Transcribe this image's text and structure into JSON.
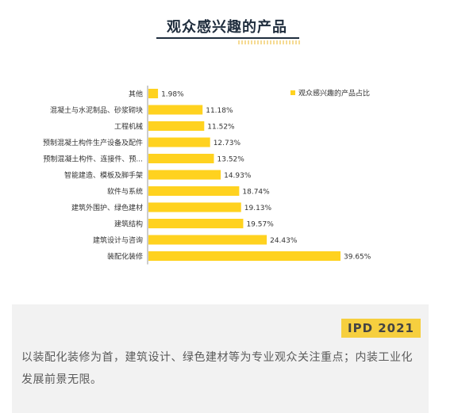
{
  "header": {
    "title": "观众感兴趣的产品"
  },
  "chart_data": {
    "type": "bar",
    "orientation": "horizontal",
    "legend": {
      "label": "观众感兴趣的产品占比",
      "placement": "top-right"
    },
    "series": [
      {
        "name": "观众感兴趣的产品占比",
        "categories": [
          "其他",
          "混凝土与水泥制品、砂浆砌块",
          "工程机械",
          "预制混凝土构件生产设备及配件",
          "预制混凝土构件、连接件、预...",
          "智能建造、模板及脚手架",
          "软件与系统",
          "建筑外围护、绿色建材",
          "建筑结构",
          "建筑设计与咨询",
          "装配化装修"
        ],
        "values": [
          1.98,
          11.18,
          11.52,
          12.73,
          13.52,
          14.93,
          18.74,
          19.13,
          19.57,
          24.43,
          39.65
        ],
        "labels": [
          "1.98%",
          "11.18%",
          "11.52%",
          "12.73%",
          "13.52%",
          "14.93%",
          "18.74%",
          "19.13%",
          "19.57%",
          "24.43%",
          "39.65%"
        ]
      }
    ],
    "colors": {
      "bar": "#FFD21F"
    },
    "xlim": [
      0,
      40
    ]
  },
  "footer": {
    "tag": "IPD 2021",
    "caption": "以装配化装修为首，建筑设计、绿色建材等为专业观众关注重点；内装工业化发展前景无限。"
  }
}
